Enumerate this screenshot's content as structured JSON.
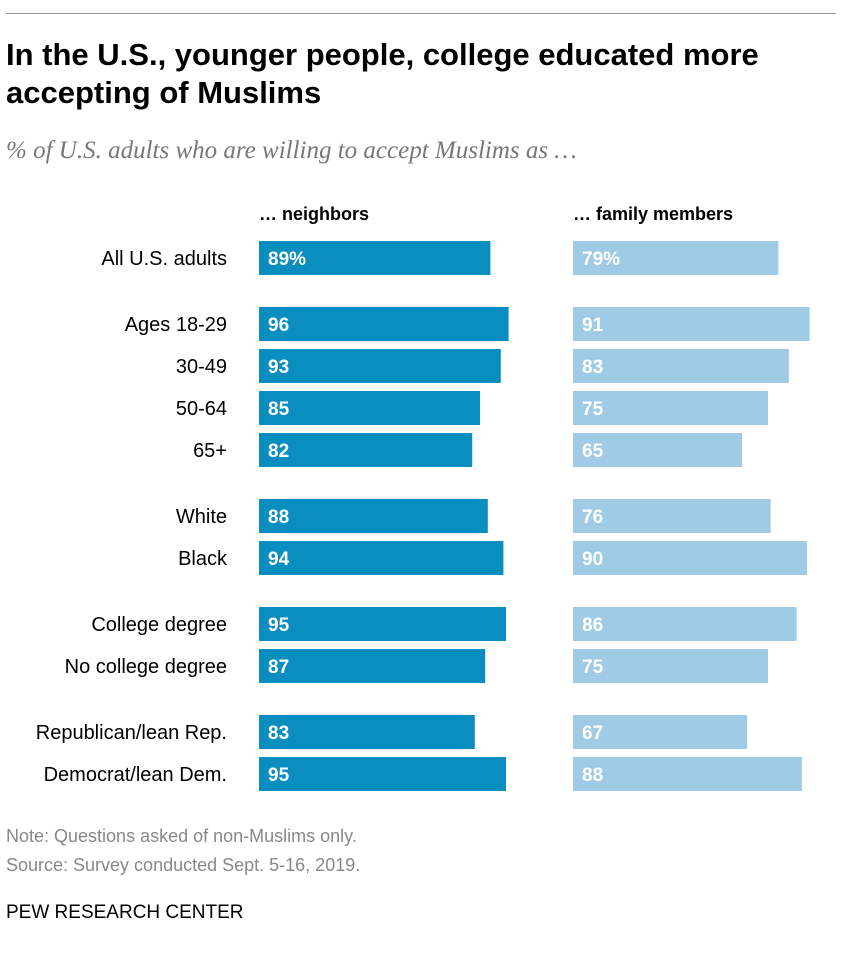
{
  "header": {
    "title": "In the U.S., younger people, college educated more accepting of Muslims",
    "subtitle": "% of U.S. adults who are willing to accept Muslims as …"
  },
  "chart_data": {
    "type": "bar",
    "orientation": "horizontal",
    "title": "In the U.S., younger people, college educated more accepting of Muslims",
    "subtitle": "% of U.S. adults who are willing to accept Muslims as …",
    "categories": [
      "All U.S. adults",
      "Ages 18-29",
      "30-49",
      "50-64",
      "65+",
      "White",
      "Black",
      "College degree",
      "No college degree",
      "Republican/lean Rep.",
      "Democrat/lean Dem."
    ],
    "groups": [
      [
        0
      ],
      [
        1,
        2,
        3,
        4
      ],
      [
        5,
        6
      ],
      [
        7,
        8
      ],
      [
        9,
        10
      ]
    ],
    "series": [
      {
        "name": "… neighbors",
        "color": "#0a8ec0",
        "values": [
          89,
          96,
          93,
          85,
          82,
          88,
          94,
          95,
          87,
          83,
          95
        ],
        "labels": [
          "89%",
          "96",
          "93",
          "85",
          "82",
          "88",
          "94",
          "95",
          "87",
          "83",
          "95"
        ]
      },
      {
        "name": "… family members",
        "color": "#9fcbe6",
        "values": [
          79,
          91,
          83,
          75,
          65,
          76,
          90,
          86,
          75,
          67,
          88
        ],
        "labels": [
          "79%",
          "91",
          "83",
          "75",
          "65",
          "76",
          "90",
          "86",
          "75",
          "67",
          "88"
        ]
      }
    ],
    "xlim": [
      0,
      100
    ],
    "grid": false,
    "legend": "column-headers"
  },
  "footer": {
    "note": "Note: Questions asked of non-Muslims only.",
    "source": "Source: Survey conducted Sept. 5-16, 2019.",
    "org": "PEW RESEARCH CENTER"
  }
}
